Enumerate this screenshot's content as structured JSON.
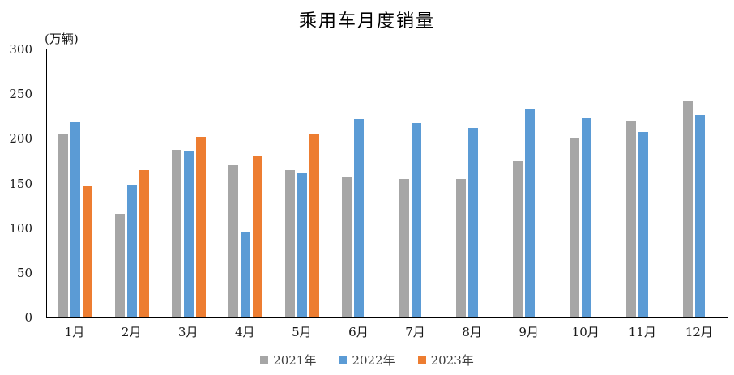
{
  "title": "乘用车月度销量",
  "unit_label": "(万辆)",
  "colors": {
    "series_2021": "#A6A6A6",
    "series_2022": "#5B9BD5",
    "series_2023": "#ED7D31",
    "axis": "#000000",
    "text": "#1a1a1a",
    "legend_text": "#404040",
    "background": "#ffffff"
  },
  "chart_data": {
    "type": "bar",
    "title": "乘用车月度销量",
    "ylabel": "(万辆)",
    "xlabel": "",
    "ylim": [
      0,
      300
    ],
    "yticks": [
      0,
      50,
      100,
      150,
      200,
      250,
      300
    ],
    "grid": false,
    "legend_position": "bottom",
    "categories": [
      "1月",
      "2月",
      "3月",
      "4月",
      "5月",
      "6月",
      "7月",
      "8月",
      "9月",
      "10月",
      "11月",
      "12月"
    ],
    "series": [
      {
        "name": "2021年",
        "color": "#A6A6A6",
        "values": [
          204.5,
          115.6,
          187.4,
          170.4,
          164.6,
          156.9,
          155.1,
          155.2,
          175.1,
          200.7,
          219.2,
          242.2
        ]
      },
      {
        "name": "2022年",
        "color": "#5B9BD5",
        "values": [
          218.6,
          148.7,
          186.4,
          96.5,
          162.3,
          222.2,
          217.4,
          212.5,
          233.2,
          223.1,
          207.5,
          226.3
        ]
      },
      {
        "name": "2023年",
        "color": "#ED7D31",
        "values": [
          146.9,
          165.3,
          201.7,
          181.1,
          205.1,
          null,
          null,
          null,
          null,
          null,
          null,
          null
        ]
      }
    ]
  }
}
